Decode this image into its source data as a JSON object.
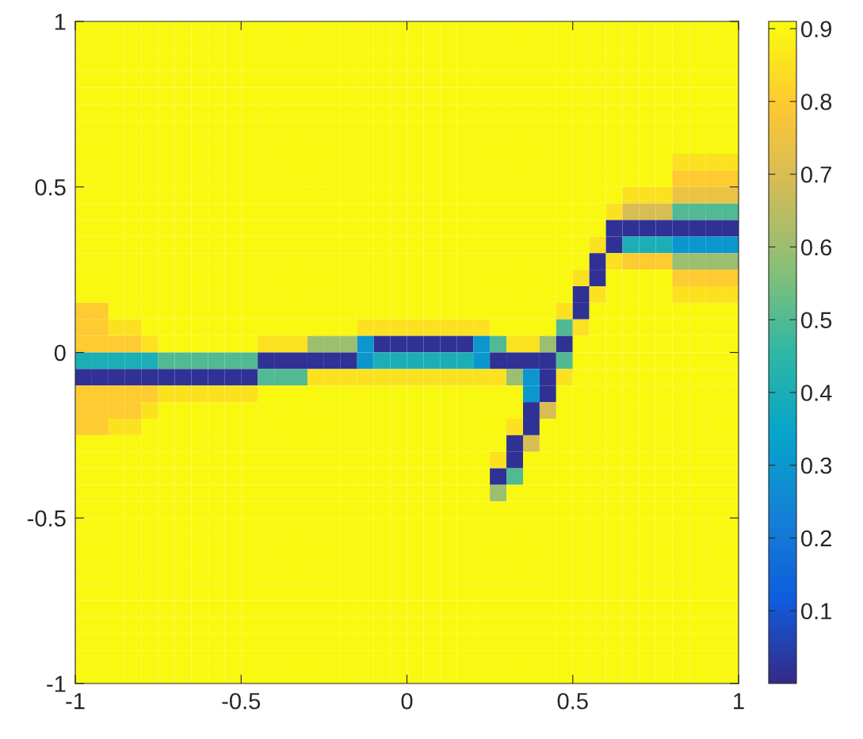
{
  "chart_data": {
    "type": "heatmap",
    "x": [
      -0.975,
      -0.925,
      -0.875,
      -0.825,
      -0.775,
      -0.725,
      -0.675,
      -0.625,
      -0.575,
      -0.525,
      -0.475,
      -0.425,
      -0.375,
      -0.325,
      -0.275,
      -0.225,
      -0.175,
      -0.125,
      -0.075,
      -0.025,
      0.025,
      0.075,
      0.125,
      0.175,
      0.225,
      0.275,
      0.325,
      0.375,
      0.425,
      0.475,
      0.525,
      0.575,
      0.625,
      0.675,
      0.725,
      0.775,
      0.825,
      0.875,
      0.925,
      0.975
    ],
    "y": [
      0.975,
      0.925,
      0.875,
      0.825,
      0.775,
      0.725,
      0.675,
      0.625,
      0.575,
      0.525,
      0.475,
      0.425,
      0.375,
      0.325,
      0.275,
      0.225,
      0.175,
      0.125,
      0.075,
      0.025,
      -0.025,
      -0.075,
      -0.125,
      -0.175,
      -0.225,
      -0.275,
      -0.325,
      -0.375,
      -0.425,
      -0.475,
      -0.525,
      -0.575,
      -0.625,
      -0.675,
      -0.725,
      -0.775,
      -0.825,
      -0.875,
      -0.925,
      -0.975
    ],
    "cells": [
      [
        0.9,
        0.9,
        0.9,
        0.9,
        0.9,
        0.9,
        0.9,
        0.9,
        0.9,
        0.9,
        0.9,
        0.9,
        0.9,
        0.9,
        0.9,
        0.9,
        0.9,
        0.9,
        0.9,
        0.9,
        0.9,
        0.9,
        0.9,
        0.9,
        0.9,
        0.9,
        0.9,
        0.9,
        0.9,
        0.9,
        0.9,
        0.9,
        0.9,
        0.9,
        0.9,
        0.9,
        0.9,
        0.9,
        0.9,
        0.9
      ],
      [
        0.9,
        0.9,
        0.9,
        0.9,
        0.9,
        0.9,
        0.9,
        0.9,
        0.9,
        0.9,
        0.9,
        0.9,
        0.9,
        0.9,
        0.9,
        0.9,
        0.9,
        0.9,
        0.9,
        0.9,
        0.9,
        0.9,
        0.9,
        0.9,
        0.9,
        0.9,
        0.9,
        0.9,
        0.9,
        0.9,
        0.9,
        0.9,
        0.9,
        0.9,
        0.9,
        0.9,
        0.9,
        0.9,
        0.9,
        0.9
      ],
      [
        0.9,
        0.9,
        0.9,
        0.9,
        0.9,
        0.9,
        0.9,
        0.9,
        0.9,
        0.9,
        0.9,
        0.9,
        0.9,
        0.9,
        0.9,
        0.9,
        0.9,
        0.9,
        0.9,
        0.9,
        0.9,
        0.9,
        0.9,
        0.9,
        0.9,
        0.9,
        0.9,
        0.9,
        0.9,
        0.9,
        0.9,
        0.9,
        0.9,
        0.9,
        0.9,
        0.9,
        0.9,
        0.9,
        0.9,
        0.9
      ],
      [
        0.9,
        0.9,
        0.9,
        0.9,
        0.9,
        0.9,
        0.9,
        0.9,
        0.9,
        0.9,
        0.9,
        0.9,
        0.9,
        0.9,
        0.9,
        0.9,
        0.9,
        0.9,
        0.9,
        0.9,
        0.9,
        0.9,
        0.9,
        0.9,
        0.9,
        0.9,
        0.9,
        0.9,
        0.9,
        0.9,
        0.9,
        0.9,
        0.9,
        0.9,
        0.9,
        0.9,
        0.9,
        0.9,
        0.9,
        0.9
      ],
      [
        0.9,
        0.9,
        0.9,
        0.9,
        0.9,
        0.9,
        0.9,
        0.9,
        0.9,
        0.9,
        0.9,
        0.9,
        0.9,
        0.9,
        0.9,
        0.9,
        0.9,
        0.9,
        0.9,
        0.9,
        0.9,
        0.9,
        0.9,
        0.9,
        0.9,
        0.9,
        0.9,
        0.9,
        0.9,
        0.9,
        0.9,
        0.9,
        0.9,
        0.9,
        0.9,
        0.9,
        0.9,
        0.9,
        0.9,
        0.9
      ],
      [
        0.9,
        0.9,
        0.9,
        0.9,
        0.9,
        0.9,
        0.9,
        0.9,
        0.9,
        0.9,
        0.9,
        0.9,
        0.9,
        0.9,
        0.9,
        0.9,
        0.9,
        0.9,
        0.9,
        0.9,
        0.9,
        0.9,
        0.9,
        0.9,
        0.9,
        0.9,
        0.9,
        0.9,
        0.9,
        0.9,
        0.9,
        0.9,
        0.9,
        0.9,
        0.9,
        0.9,
        0.9,
        0.9,
        0.9,
        0.9
      ],
      [
        0.9,
        0.9,
        0.9,
        0.9,
        0.9,
        0.9,
        0.9,
        0.9,
        0.9,
        0.9,
        0.9,
        0.9,
        0.9,
        0.9,
        0.9,
        0.9,
        0.9,
        0.9,
        0.9,
        0.9,
        0.9,
        0.9,
        0.9,
        0.9,
        0.9,
        0.9,
        0.9,
        0.9,
        0.9,
        0.9,
        0.9,
        0.9,
        0.9,
        0.9,
        0.9,
        0.9,
        0.9,
        0.9,
        0.9,
        0.9
      ],
      [
        0.9,
        0.9,
        0.9,
        0.9,
        0.9,
        0.9,
        0.9,
        0.9,
        0.9,
        0.9,
        0.9,
        0.9,
        0.9,
        0.9,
        0.9,
        0.9,
        0.9,
        0.9,
        0.9,
        0.9,
        0.9,
        0.9,
        0.9,
        0.9,
        0.9,
        0.9,
        0.9,
        0.9,
        0.9,
        0.9,
        0.9,
        0.9,
        0.9,
        0.9,
        0.9,
        0.9,
        0.9,
        0.9,
        0.9,
        0.9
      ],
      [
        0.9,
        0.9,
        0.9,
        0.9,
        0.9,
        0.9,
        0.9,
        0.9,
        0.9,
        0.9,
        0.9,
        0.9,
        0.9,
        0.9,
        0.9,
        0.9,
        0.9,
        0.9,
        0.9,
        0.9,
        0.9,
        0.9,
        0.9,
        0.9,
        0.9,
        0.9,
        0.9,
        0.9,
        0.9,
        0.9,
        0.9,
        0.9,
        0.9,
        0.9,
        0.9,
        0.9,
        0.85,
        0.85,
        0.85,
        0.85
      ],
      [
        0.9,
        0.9,
        0.9,
        0.9,
        0.9,
        0.9,
        0.9,
        0.9,
        0.9,
        0.9,
        0.9,
        0.9,
        0.9,
        0.9,
        0.9,
        0.9,
        0.9,
        0.9,
        0.9,
        0.9,
        0.9,
        0.9,
        0.9,
        0.9,
        0.9,
        0.9,
        0.9,
        0.9,
        0.9,
        0.9,
        0.9,
        0.9,
        0.9,
        0.9,
        0.9,
        0.9,
        0.8,
        0.8,
        0.8,
        0.8
      ],
      [
        0.9,
        0.9,
        0.9,
        0.9,
        0.9,
        0.9,
        0.9,
        0.9,
        0.9,
        0.9,
        0.9,
        0.9,
        0.9,
        0.9,
        0.9,
        0.9,
        0.9,
        0.9,
        0.9,
        0.9,
        0.9,
        0.9,
        0.9,
        0.9,
        0.9,
        0.9,
        0.9,
        0.9,
        0.9,
        0.9,
        0.9,
        0.9,
        0.9,
        0.85,
        0.85,
        0.85,
        0.75,
        0.75,
        0.75,
        0.75
      ],
      [
        0.9,
        0.9,
        0.9,
        0.9,
        0.9,
        0.9,
        0.9,
        0.9,
        0.9,
        0.9,
        0.9,
        0.9,
        0.9,
        0.9,
        0.9,
        0.9,
        0.9,
        0.9,
        0.9,
        0.9,
        0.9,
        0.9,
        0.9,
        0.9,
        0.9,
        0.9,
        0.9,
        0.9,
        0.9,
        0.9,
        0.9,
        0.9,
        0.85,
        0.7,
        0.7,
        0.7,
        0.5,
        0.5,
        0.5,
        0.5
      ],
      [
        0.9,
        0.9,
        0.9,
        0.9,
        0.9,
        0.9,
        0.9,
        0.9,
        0.9,
        0.9,
        0.9,
        0.9,
        0.9,
        0.9,
        0.9,
        0.9,
        0.9,
        0.9,
        0.9,
        0.9,
        0.9,
        0.9,
        0.9,
        0.9,
        0.9,
        0.9,
        0.9,
        0.9,
        0.9,
        0.9,
        0.9,
        0.9,
        0.02,
        0.02,
        0.02,
        0.02,
        0.02,
        0.02,
        0.02,
        0.02
      ],
      [
        0.9,
        0.9,
        0.9,
        0.9,
        0.9,
        0.9,
        0.9,
        0.9,
        0.9,
        0.9,
        0.9,
        0.9,
        0.9,
        0.9,
        0.9,
        0.9,
        0.9,
        0.9,
        0.9,
        0.9,
        0.9,
        0.9,
        0.9,
        0.9,
        0.9,
        0.9,
        0.9,
        0.9,
        0.9,
        0.9,
        0.9,
        0.85,
        0.02,
        0.4,
        0.4,
        0.4,
        0.3,
        0.3,
        0.3,
        0.3
      ],
      [
        0.9,
        0.9,
        0.9,
        0.9,
        0.9,
        0.9,
        0.9,
        0.9,
        0.9,
        0.9,
        0.9,
        0.9,
        0.9,
        0.9,
        0.9,
        0.9,
        0.9,
        0.9,
        0.9,
        0.9,
        0.9,
        0.9,
        0.9,
        0.9,
        0.9,
        0.9,
        0.9,
        0.9,
        0.9,
        0.9,
        0.9,
        0.02,
        0.85,
        0.8,
        0.8,
        0.8,
        0.6,
        0.6,
        0.6,
        0.6
      ],
      [
        0.9,
        0.9,
        0.9,
        0.9,
        0.9,
        0.9,
        0.9,
        0.9,
        0.9,
        0.9,
        0.9,
        0.9,
        0.9,
        0.9,
        0.9,
        0.9,
        0.9,
        0.9,
        0.9,
        0.9,
        0.9,
        0.9,
        0.9,
        0.9,
        0.9,
        0.9,
        0.9,
        0.9,
        0.9,
        0.9,
        0.85,
        0.02,
        0.9,
        0.9,
        0.9,
        0.9,
        0.8,
        0.8,
        0.8,
        0.8
      ],
      [
        0.9,
        0.9,
        0.9,
        0.9,
        0.9,
        0.9,
        0.9,
        0.9,
        0.9,
        0.9,
        0.9,
        0.9,
        0.9,
        0.9,
        0.9,
        0.9,
        0.9,
        0.9,
        0.9,
        0.9,
        0.9,
        0.9,
        0.9,
        0.9,
        0.9,
        0.9,
        0.9,
        0.9,
        0.9,
        0.9,
        0.02,
        0.85,
        0.9,
        0.9,
        0.9,
        0.9,
        0.85,
        0.85,
        0.85,
        0.85
      ],
      [
        0.8,
        0.8,
        0.9,
        0.9,
        0.9,
        0.9,
        0.9,
        0.9,
        0.9,
        0.9,
        0.9,
        0.9,
        0.9,
        0.9,
        0.9,
        0.9,
        0.9,
        0.9,
        0.9,
        0.9,
        0.9,
        0.9,
        0.9,
        0.9,
        0.9,
        0.9,
        0.9,
        0.9,
        0.9,
        0.85,
        0.02,
        0.9,
        0.9,
        0.9,
        0.9,
        0.9,
        0.9,
        0.9,
        0.9,
        0.9
      ],
      [
        0.8,
        0.8,
        0.85,
        0.85,
        0.9,
        0.9,
        0.9,
        0.9,
        0.9,
        0.9,
        0.9,
        0.9,
        0.9,
        0.9,
        0.9,
        0.9,
        0.9,
        0.85,
        0.85,
        0.85,
        0.85,
        0.85,
        0.85,
        0.85,
        0.85,
        0.9,
        0.9,
        0.9,
        0.9,
        0.5,
        0.85,
        0.9,
        0.9,
        0.9,
        0.9,
        0.9,
        0.9,
        0.9,
        0.9,
        0.9
      ],
      [
        0.8,
        0.8,
        0.8,
        0.8,
        0.85,
        0.9,
        0.9,
        0.9,
        0.9,
        0.9,
        0.9,
        0.85,
        0.85,
        0.85,
        0.6,
        0.6,
        0.6,
        0.3,
        0.02,
        0.02,
        0.02,
        0.02,
        0.02,
        0.02,
        0.3,
        0.5,
        0.85,
        0.85,
        0.6,
        0.02,
        0.9,
        0.9,
        0.9,
        0.9,
        0.9,
        0.9,
        0.9,
        0.9,
        0.9,
        0.9
      ],
      [
        0.4,
        0.4,
        0.4,
        0.4,
        0.4,
        0.5,
        0.5,
        0.5,
        0.5,
        0.5,
        0.5,
        0.02,
        0.02,
        0.02,
        0.02,
        0.02,
        0.02,
        0.3,
        0.4,
        0.4,
        0.4,
        0.4,
        0.4,
        0.4,
        0.3,
        0.02,
        0.02,
        0.02,
        0.02,
        0.5,
        0.9,
        0.9,
        0.9,
        0.9,
        0.9,
        0.9,
        0.9,
        0.9,
        0.9,
        0.9
      ],
      [
        0.02,
        0.02,
        0.02,
        0.02,
        0.02,
        0.02,
        0.02,
        0.02,
        0.02,
        0.02,
        0.02,
        0.5,
        0.5,
        0.5,
        0.85,
        0.85,
        0.85,
        0.85,
        0.85,
        0.85,
        0.85,
        0.85,
        0.85,
        0.85,
        0.85,
        0.85,
        0.6,
        0.3,
        0.02,
        0.85,
        0.9,
        0.9,
        0.9,
        0.9,
        0.9,
        0.9,
        0.9,
        0.9,
        0.9,
        0.9
      ],
      [
        0.8,
        0.8,
        0.8,
        0.8,
        0.8,
        0.85,
        0.85,
        0.85,
        0.85,
        0.85,
        0.85,
        0.9,
        0.9,
        0.9,
        0.9,
        0.9,
        0.9,
        0.9,
        0.9,
        0.9,
        0.9,
        0.9,
        0.9,
        0.9,
        0.9,
        0.9,
        0.9,
        0.3,
        0.02,
        0.9,
        0.9,
        0.9,
        0.9,
        0.9,
        0.9,
        0.9,
        0.9,
        0.9,
        0.9,
        0.9
      ],
      [
        0.8,
        0.8,
        0.8,
        0.8,
        0.85,
        0.9,
        0.9,
        0.9,
        0.9,
        0.9,
        0.9,
        0.9,
        0.9,
        0.9,
        0.9,
        0.9,
        0.9,
        0.9,
        0.9,
        0.9,
        0.9,
        0.9,
        0.9,
        0.9,
        0.9,
        0.9,
        0.9,
        0.02,
        0.7,
        0.9,
        0.9,
        0.9,
        0.9,
        0.9,
        0.9,
        0.9,
        0.9,
        0.9,
        0.9,
        0.9
      ],
      [
        0.8,
        0.8,
        0.85,
        0.85,
        0.9,
        0.9,
        0.9,
        0.9,
        0.9,
        0.9,
        0.9,
        0.9,
        0.9,
        0.9,
        0.9,
        0.9,
        0.9,
        0.9,
        0.9,
        0.9,
        0.9,
        0.9,
        0.9,
        0.9,
        0.9,
        0.9,
        0.85,
        0.02,
        0.9,
        0.9,
        0.9,
        0.9,
        0.9,
        0.9,
        0.9,
        0.9,
        0.9,
        0.9,
        0.9,
        0.9
      ],
      [
        0.9,
        0.9,
        0.9,
        0.9,
        0.9,
        0.9,
        0.9,
        0.9,
        0.9,
        0.9,
        0.9,
        0.9,
        0.9,
        0.9,
        0.9,
        0.9,
        0.9,
        0.9,
        0.9,
        0.9,
        0.9,
        0.9,
        0.9,
        0.9,
        0.9,
        0.9,
        0.02,
        0.7,
        0.9,
        0.9,
        0.9,
        0.9,
        0.9,
        0.9,
        0.9,
        0.9,
        0.9,
        0.9,
        0.9,
        0.9
      ],
      [
        0.9,
        0.9,
        0.9,
        0.9,
        0.9,
        0.9,
        0.9,
        0.9,
        0.9,
        0.9,
        0.9,
        0.9,
        0.9,
        0.9,
        0.9,
        0.9,
        0.9,
        0.9,
        0.9,
        0.9,
        0.9,
        0.9,
        0.9,
        0.9,
        0.9,
        0.85,
        0.02,
        0.9,
        0.9,
        0.9,
        0.9,
        0.9,
        0.9,
        0.9,
        0.9,
        0.9,
        0.9,
        0.9,
        0.9,
        0.9
      ],
      [
        0.9,
        0.9,
        0.9,
        0.9,
        0.9,
        0.9,
        0.9,
        0.9,
        0.9,
        0.9,
        0.9,
        0.9,
        0.9,
        0.9,
        0.9,
        0.9,
        0.9,
        0.9,
        0.9,
        0.9,
        0.9,
        0.9,
        0.9,
        0.9,
        0.9,
        0.02,
        0.5,
        0.9,
        0.9,
        0.9,
        0.9,
        0.9,
        0.9,
        0.9,
        0.9,
        0.9,
        0.9,
        0.9,
        0.9,
        0.9
      ],
      [
        0.9,
        0.9,
        0.9,
        0.9,
        0.9,
        0.9,
        0.9,
        0.9,
        0.9,
        0.9,
        0.9,
        0.9,
        0.9,
        0.9,
        0.9,
        0.9,
        0.9,
        0.9,
        0.9,
        0.9,
        0.9,
        0.9,
        0.9,
        0.9,
        0.9,
        0.6,
        0.9,
        0.9,
        0.9,
        0.9,
        0.9,
        0.9,
        0.9,
        0.9,
        0.9,
        0.9,
        0.9,
        0.9,
        0.9,
        0.9
      ],
      [
        0.9,
        0.9,
        0.9,
        0.9,
        0.9,
        0.9,
        0.9,
        0.9,
        0.9,
        0.9,
        0.9,
        0.9,
        0.9,
        0.9,
        0.9,
        0.9,
        0.9,
        0.9,
        0.9,
        0.9,
        0.9,
        0.9,
        0.9,
        0.9,
        0.9,
        0.9,
        0.9,
        0.9,
        0.9,
        0.9,
        0.9,
        0.9,
        0.9,
        0.9,
        0.9,
        0.9,
        0.9,
        0.9,
        0.9,
        0.9
      ],
      [
        0.9,
        0.9,
        0.9,
        0.9,
        0.9,
        0.9,
        0.9,
        0.9,
        0.9,
        0.9,
        0.9,
        0.9,
        0.9,
        0.9,
        0.9,
        0.9,
        0.9,
        0.9,
        0.9,
        0.9,
        0.9,
        0.9,
        0.9,
        0.9,
        0.9,
        0.9,
        0.9,
        0.9,
        0.9,
        0.9,
        0.9,
        0.9,
        0.9,
        0.9,
        0.9,
        0.9,
        0.9,
        0.9,
        0.9,
        0.9
      ],
      [
        0.9,
        0.9,
        0.9,
        0.9,
        0.9,
        0.9,
        0.9,
        0.9,
        0.9,
        0.9,
        0.9,
        0.9,
        0.9,
        0.9,
        0.9,
        0.9,
        0.9,
        0.9,
        0.9,
        0.9,
        0.9,
        0.9,
        0.9,
        0.9,
        0.9,
        0.9,
        0.9,
        0.9,
        0.9,
        0.9,
        0.9,
        0.9,
        0.9,
        0.9,
        0.9,
        0.9,
        0.9,
        0.9,
        0.9,
        0.9
      ],
      [
        0.9,
        0.9,
        0.9,
        0.9,
        0.9,
        0.9,
        0.9,
        0.9,
        0.9,
        0.9,
        0.9,
        0.9,
        0.9,
        0.9,
        0.9,
        0.9,
        0.9,
        0.9,
        0.9,
        0.9,
        0.9,
        0.9,
        0.9,
        0.9,
        0.9,
        0.9,
        0.9,
        0.9,
        0.9,
        0.9,
        0.9,
        0.9,
        0.9,
        0.9,
        0.9,
        0.9,
        0.9,
        0.9,
        0.9,
        0.9
      ],
      [
        0.9,
        0.9,
        0.9,
        0.9,
        0.9,
        0.9,
        0.9,
        0.9,
        0.9,
        0.9,
        0.9,
        0.9,
        0.9,
        0.9,
        0.9,
        0.9,
        0.9,
        0.9,
        0.9,
        0.9,
        0.9,
        0.9,
        0.9,
        0.9,
        0.9,
        0.9,
        0.9,
        0.9,
        0.9,
        0.9,
        0.9,
        0.9,
        0.9,
        0.9,
        0.9,
        0.9,
        0.9,
        0.9,
        0.9,
        0.9
      ],
      [
        0.9,
        0.9,
        0.9,
        0.9,
        0.9,
        0.9,
        0.9,
        0.9,
        0.9,
        0.9,
        0.9,
        0.9,
        0.9,
        0.9,
        0.9,
        0.9,
        0.9,
        0.9,
        0.9,
        0.9,
        0.9,
        0.9,
        0.9,
        0.9,
        0.9,
        0.9,
        0.9,
        0.9,
        0.9,
        0.9,
        0.9,
        0.9,
        0.9,
        0.9,
        0.9,
        0.9,
        0.9,
        0.9,
        0.9,
        0.9
      ],
      [
        0.9,
        0.9,
        0.9,
        0.9,
        0.9,
        0.9,
        0.9,
        0.9,
        0.9,
        0.9,
        0.9,
        0.9,
        0.9,
        0.9,
        0.9,
        0.9,
        0.9,
        0.9,
        0.9,
        0.9,
        0.9,
        0.9,
        0.9,
        0.9,
        0.9,
        0.9,
        0.9,
        0.9,
        0.9,
        0.9,
        0.9,
        0.9,
        0.9,
        0.9,
        0.9,
        0.9,
        0.9,
        0.9,
        0.9,
        0.9
      ],
      [
        0.9,
        0.9,
        0.9,
        0.9,
        0.9,
        0.9,
        0.9,
        0.9,
        0.9,
        0.9,
        0.9,
        0.9,
        0.9,
        0.9,
        0.9,
        0.9,
        0.9,
        0.9,
        0.9,
        0.9,
        0.9,
        0.9,
        0.9,
        0.9,
        0.9,
        0.9,
        0.9,
        0.9,
        0.9,
        0.9,
        0.9,
        0.9,
        0.9,
        0.9,
        0.9,
        0.9,
        0.9,
        0.9,
        0.9,
        0.9
      ],
      [
        0.9,
        0.9,
        0.9,
        0.9,
        0.9,
        0.9,
        0.9,
        0.9,
        0.9,
        0.9,
        0.9,
        0.9,
        0.9,
        0.9,
        0.9,
        0.9,
        0.9,
        0.9,
        0.9,
        0.9,
        0.9,
        0.9,
        0.9,
        0.9,
        0.9,
        0.9,
        0.9,
        0.9,
        0.9,
        0.9,
        0.9,
        0.9,
        0.9,
        0.9,
        0.9,
        0.9,
        0.9,
        0.9,
        0.9,
        0.9
      ],
      [
        0.9,
        0.9,
        0.9,
        0.9,
        0.9,
        0.9,
        0.9,
        0.9,
        0.9,
        0.9,
        0.9,
        0.9,
        0.9,
        0.9,
        0.9,
        0.9,
        0.9,
        0.9,
        0.9,
        0.9,
        0.9,
        0.9,
        0.9,
        0.9,
        0.9,
        0.9,
        0.9,
        0.9,
        0.9,
        0.9,
        0.9,
        0.9,
        0.9,
        0.9,
        0.9,
        0.9,
        0.9,
        0.9,
        0.9,
        0.9
      ],
      [
        0.9,
        0.9,
        0.9,
        0.9,
        0.9,
        0.9,
        0.9,
        0.9,
        0.9,
        0.9,
        0.9,
        0.9,
        0.9,
        0.9,
        0.9,
        0.9,
        0.9,
        0.9,
        0.9,
        0.9,
        0.9,
        0.9,
        0.9,
        0.9,
        0.9,
        0.9,
        0.9,
        0.9,
        0.9,
        0.9,
        0.9,
        0.9,
        0.9,
        0.9,
        0.9,
        0.9,
        0.9,
        0.9,
        0.9,
        0.9
      ]
    ],
    "xlim": [
      -1,
      1
    ],
    "ylim": [
      -1,
      1
    ],
    "xticks": [
      -1,
      -0.5,
      0,
      0.5,
      1
    ],
    "yticks": [
      -1,
      -0.5,
      0,
      0.5,
      1
    ],
    "clim": [
      0,
      0.91
    ],
    "cticks": [
      0.1,
      0.2,
      0.3,
      0.4,
      0.5,
      0.6,
      0.7,
      0.8,
      0.9
    ]
  }
}
